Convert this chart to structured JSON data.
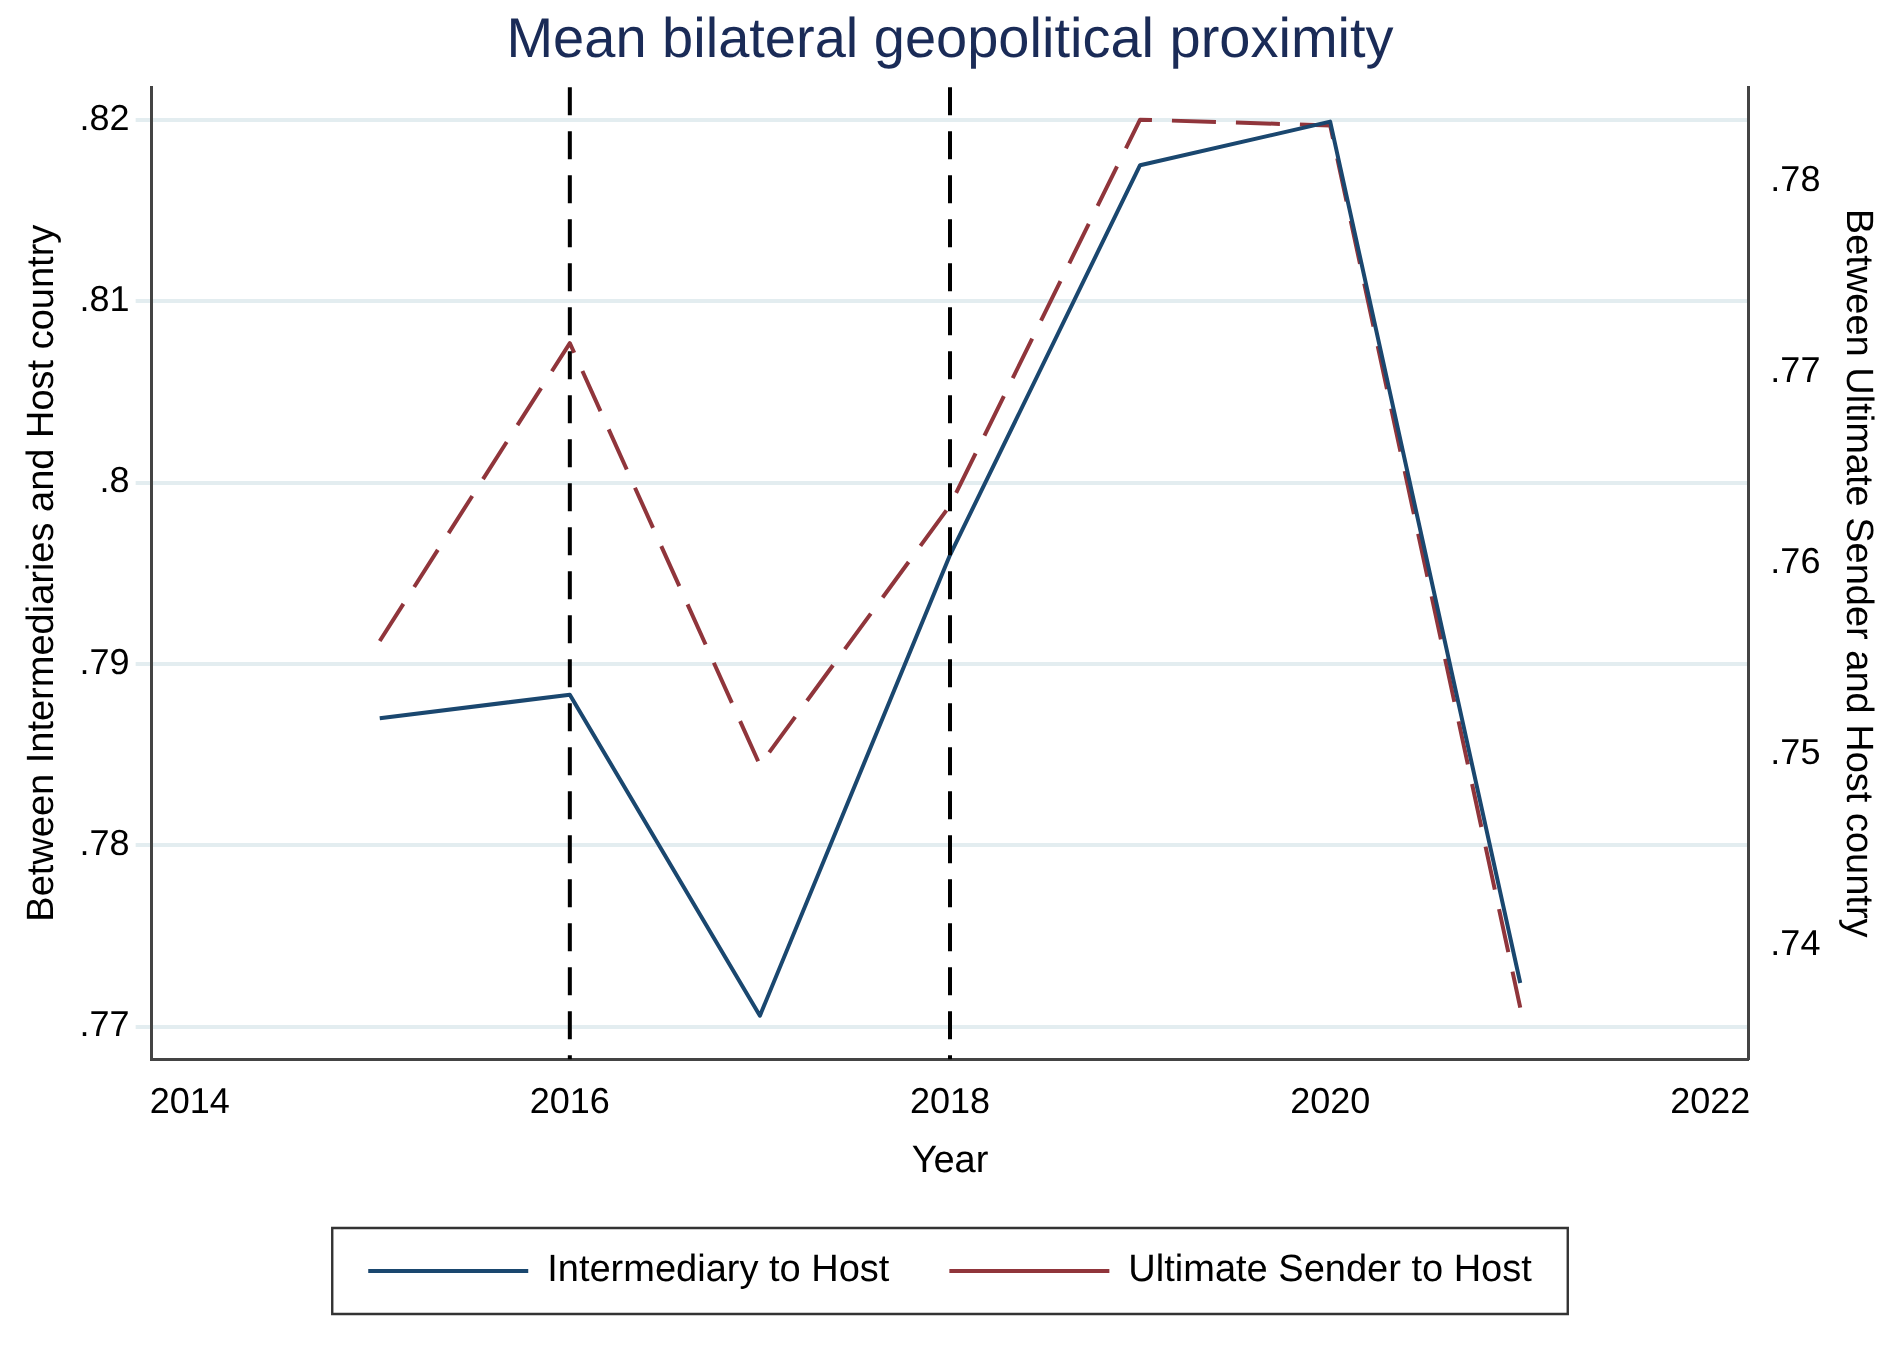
{
  "chart_data": {
    "type": "line",
    "title": "Mean bilateral geopolitical proximity",
    "xlabel": "Year",
    "ylabel": "Between Intermediaries and Host country",
    "y2label": "Between Ultimate Sender and Host country",
    "x": [
      2015,
      2016,
      2017,
      2018,
      2019,
      2020,
      2021
    ],
    "series": [
      {
        "name": "Intermediary to Host",
        "color": "#1a476f",
        "line_style": "solid",
        "values": [
          0.787,
          0.7883,
          0.7706,
          0.796,
          0.8175,
          0.8199,
          0.7724
        ]
      },
      {
        "name": "Ultimate Sender to Host",
        "color": "#90353b",
        "line_style": "dashed",
        "axis": "y2",
        "values": [
          0.7559,
          0.7715,
          0.7494,
          0.763,
          0.7832,
          0.7829,
          0.7367
        ]
      }
    ],
    "xlim": [
      2013.8,
      2022.2
    ],
    "xticks": [
      2014,
      2016,
      2018,
      2020,
      2022
    ],
    "ylim": [
      0.7682,
      0.8218
    ],
    "yticks": [
      {
        "value": 0.77,
        "label": ".77"
      },
      {
        "value": 0.78,
        "label": ".78"
      },
      {
        "value": 0.79,
        "label": ".79"
      },
      {
        "value": 0.8,
        "label": ".8"
      },
      {
        "value": 0.81,
        "label": ".81"
      },
      {
        "value": 0.82,
        "label": ".82"
      }
    ],
    "y2lim": [
      0.734,
      0.7849
    ],
    "y2ticks": [
      {
        "value": 0.74,
        "label": ".74"
      },
      {
        "value": 0.75,
        "label": ".75"
      },
      {
        "value": 0.76,
        "label": ".76"
      },
      {
        "value": 0.77,
        "label": ".77"
      },
      {
        "value": 0.78,
        "label": ".78"
      }
    ],
    "ref_lines": [
      {
        "axis": "x",
        "value": 2016,
        "color": "#000000",
        "line_style": "dashed"
      },
      {
        "axis": "x",
        "value": 2018,
        "color": "#000000",
        "line_style": "dashed"
      }
    ],
    "grid": "y",
    "legend": "bottom",
    "marker": "none"
  }
}
